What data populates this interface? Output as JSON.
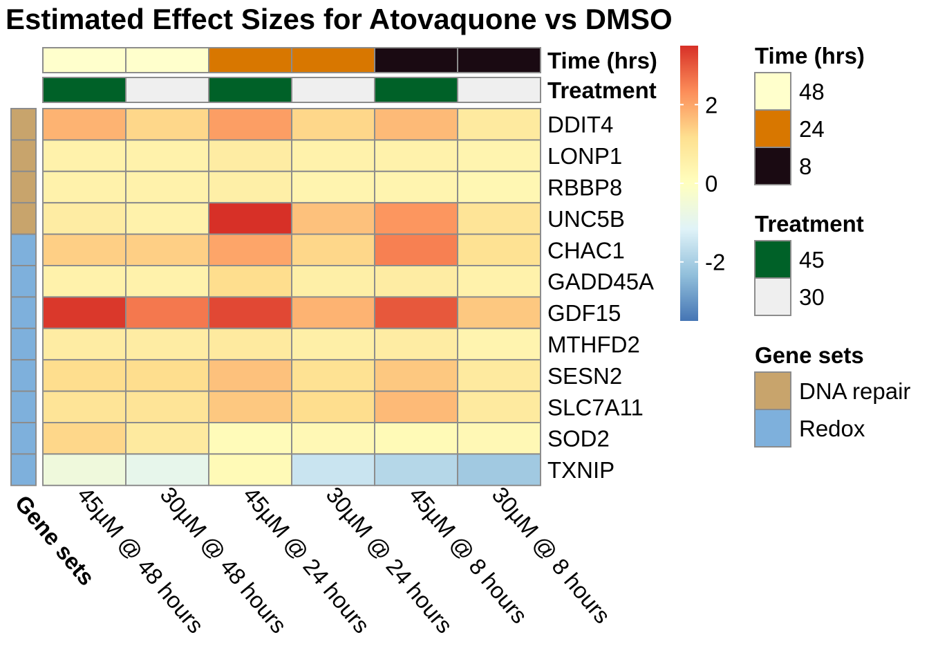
{
  "chart_data": {
    "type": "heatmap",
    "title": "Estimated Effect Sizes for Atovaquone vs DMSO",
    "columns": [
      "45µM @ 48 hours",
      "30µM @ 48 hours",
      "45µM @ 24 hours",
      "30µM @ 24 hours",
      "45µM @ 8 hours",
      "30µM @ 8 hours"
    ],
    "rows": [
      "DDIT4",
      "LONP1",
      "RBBP8",
      "UNC5B",
      "CHAC1",
      "GADD45A",
      "GDF15",
      "MTHFD2",
      "SESN2",
      "SLC7A11",
      "SOD2",
      "TXNIP"
    ],
    "values": [
      [
        1.8,
        1.3,
        2.1,
        1.3,
        1.7,
        0.8
      ],
      [
        0.5,
        0.5,
        0.7,
        0.5,
        0.5,
        0.4
      ],
      [
        0.5,
        0.5,
        0.6,
        0.4,
        0.4,
        0.3
      ],
      [
        0.7,
        0.5,
        3.5,
        1.6,
        2.2,
        1.0
      ],
      [
        1.4,
        1.4,
        2.0,
        1.3,
        2.5,
        1.1
      ],
      [
        0.5,
        0.5,
        1.2,
        0.6,
        0.7,
        0.5
      ],
      [
        3.4,
        2.6,
        3.2,
        1.8,
        3.0,
        1.5
      ],
      [
        0.7,
        0.7,
        0.8,
        0.6,
        0.7,
        0.4
      ],
      [
        1.2,
        1.2,
        1.6,
        1.1,
        1.5,
        0.8
      ],
      [
        1.0,
        1.0,
        1.5,
        1.2,
        1.7,
        0.8
      ],
      [
        1.3,
        0.8,
        0.15,
        0.25,
        0.2,
        0.25
      ],
      [
        -0.6,
        -0.9,
        0.2,
        -1.5,
        -1.8,
        -2.1
      ]
    ],
    "color_scale": {
      "min": -3.5,
      "max": 3.5,
      "ticks": [
        2,
        0,
        -2
      ],
      "tick_labels": [
        "2",
        "0",
        "-2"
      ]
    },
    "palette": [
      "#4575b4",
      "#91bfdb",
      "#e0f3f8",
      "#ffffbf",
      "#fee090",
      "#fc8d59",
      "#d73027"
    ],
    "column_annotations": [
      {
        "name": "Time (hrs)",
        "values": [
          "48",
          "48",
          "24",
          "24",
          "8",
          "8"
        ]
      },
      {
        "name": "Treatment",
        "values": [
          "45",
          "30",
          "45",
          "30",
          "45",
          "30"
        ]
      }
    ],
    "row_annotation": {
      "name": "Gene sets",
      "values": [
        "DNA repair",
        "DNA repair",
        "DNA repair",
        "DNA repair",
        "Redox",
        "Redox",
        "Redox",
        "Redox",
        "Redox",
        "Redox",
        "Redox",
        "Redox"
      ]
    },
    "legends": [
      {
        "title": "Time (hrs)",
        "items": [
          {
            "label": "48",
            "color": "#ffffcc"
          },
          {
            "label": "24",
            "color": "#d87700"
          },
          {
            "label": "8",
            "color": "#1a0a12"
          }
        ]
      },
      {
        "title": "Treatment",
        "items": [
          {
            "label": "45",
            "color": "#006128"
          },
          {
            "label": "30",
            "color": "#efefef"
          }
        ]
      },
      {
        "title": "Gene sets",
        "items": [
          {
            "label": "DNA repair",
            "color": "#c8a46c"
          },
          {
            "label": "Redox",
            "color": "#7eb0dc"
          }
        ]
      }
    ]
  }
}
